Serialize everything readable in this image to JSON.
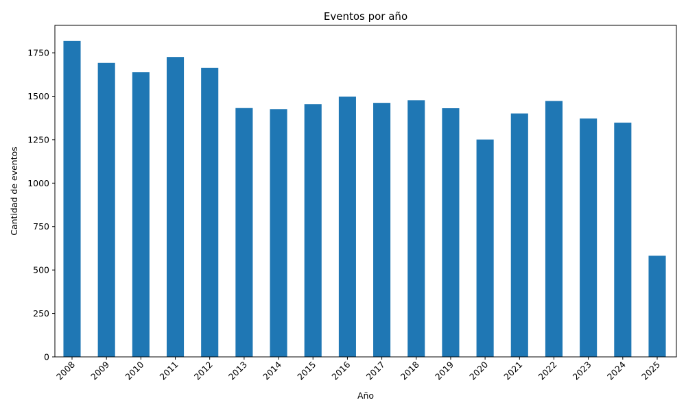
{
  "chart_data": {
    "type": "bar",
    "title": "Eventos por año",
    "xlabel": "Año",
    "ylabel": "Cantidad de eventos",
    "categories": [
      "2008",
      "2009",
      "2010",
      "2011",
      "2012",
      "2013",
      "2014",
      "2015",
      "2016",
      "2017",
      "2018",
      "2019",
      "2020",
      "2021",
      "2022",
      "2023",
      "2024",
      "2025"
    ],
    "values": [
      1818,
      1692,
      1639,
      1726,
      1664,
      1432,
      1426,
      1454,
      1498,
      1462,
      1477,
      1431,
      1251,
      1401,
      1473,
      1372,
      1348,
      582
    ],
    "yticks": [
      "0",
      "250",
      "500",
      "750",
      "1000",
      "1250",
      "1500",
      "1750"
    ],
    "ylim": [
      0,
      1908
    ],
    "bar_color": "#1f77b4",
    "grid": false,
    "legend": "none"
  }
}
